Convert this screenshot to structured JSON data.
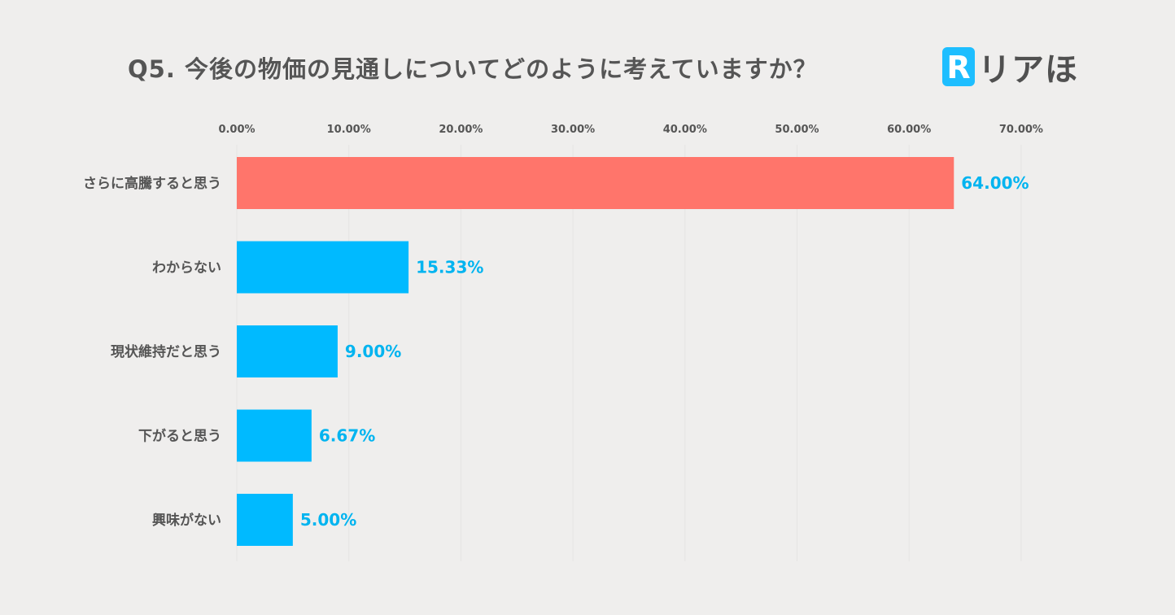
{
  "header": {
    "title": "Q5. 今後の物価の見通しについてどのように考えていますか？"
  },
  "logo": {
    "mark_letter": "R",
    "text": "リアほ",
    "icon": "r-logo-icon"
  },
  "colors": {
    "background": "#efeeed",
    "highlight_bar": "#ff756b",
    "bar": "#00baff",
    "highlight_label": "#00b4f0",
    "value_label": "#00b4f0",
    "text": "#555555",
    "logo_blue": "#1ebeff"
  },
  "chart_data": {
    "type": "bar",
    "orientation": "horizontal",
    "title": "Q5. 今後の物価の見通しについてどのように考えていますか？",
    "categories": [
      "さらに高騰すると思う",
      "わからない",
      "現状維持だと思う",
      "下がると思う",
      "興味がない"
    ],
    "values": [
      64.0,
      15.33,
      9.0,
      6.67,
      5.0
    ],
    "value_labels": [
      "64.00%",
      "15.33%",
      "9.00%",
      "6.67%",
      "5.00%"
    ],
    "highlight_index": 0,
    "xlim": [
      0,
      70
    ],
    "x_ticks": [
      0,
      10,
      20,
      30,
      40,
      50,
      60,
      70
    ],
    "x_tick_labels": [
      "0.00%",
      "10.00%",
      "20.00%",
      "30.00%",
      "40.00%",
      "50.00%",
      "60.00%",
      "70.00%"
    ],
    "x_axis_position": "top",
    "grid": true,
    "legend": "none"
  }
}
